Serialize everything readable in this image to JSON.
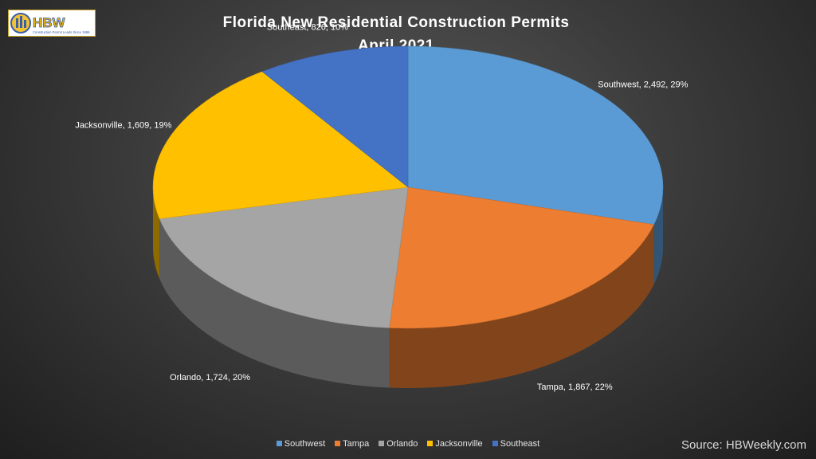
{
  "logo": {
    "text": "HBW",
    "tagline": "Construction Permit Leads Since 1996"
  },
  "source": "Source: HBWeekly.com",
  "chart_data": {
    "type": "pie",
    "title": "Florida New Residential Construction Permits",
    "subtitle": "April 2021",
    "legend_position": "bottom",
    "slices": [
      {
        "name": "Southwest",
        "value": 2492,
        "label": "Southwest, 2,492, 29%",
        "color": "#5b9bd5"
      },
      {
        "name": "Tampa",
        "value": 1867,
        "label": "Tampa, 1,867, 22%",
        "color": "#ed7d31"
      },
      {
        "name": "Orlando",
        "value": 1724,
        "label": "Orlando, 1,724, 20%",
        "color": "#a5a5a5"
      },
      {
        "name": "Jacksonville",
        "value": 1609,
        "label": "Jacksonville, 1,609, 19%",
        "color": "#ffc000"
      },
      {
        "name": "Southeast",
        "value": 826,
        "label": "Southeast, 826, 10%",
        "color": "#4472c4"
      }
    ]
  }
}
